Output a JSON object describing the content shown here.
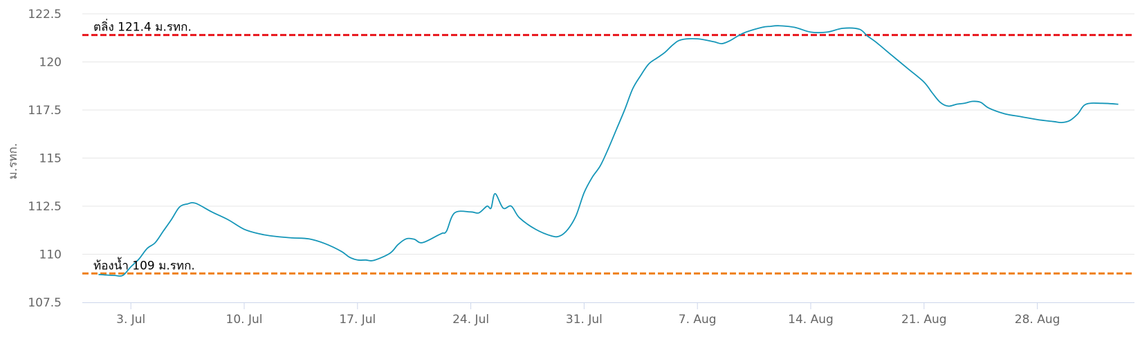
{
  "chart_data": {
    "type": "line",
    "ylabel": "ม.รทก.",
    "ylim": [
      107.5,
      122.5
    ],
    "yticks": [
      107.5,
      110,
      112.5,
      115,
      117.5,
      120,
      122.5
    ],
    "y_tick_labels": [
      "107.5",
      "110",
      "112.5",
      "115",
      "117.5",
      "120",
      "122.5"
    ],
    "xlim": [
      "2023-06-30",
      "2023-09-03"
    ],
    "xticks": [
      "2023-07-03",
      "2023-07-10",
      "2023-07-17",
      "2023-07-24",
      "2023-07-31",
      "2023-08-07",
      "2023-08-14",
      "2023-08-21",
      "2023-08-28"
    ],
    "x_tick_labels": [
      "3. Jul",
      "10. Jul",
      "17. Jul",
      "24. Jul",
      "31. Jul",
      "7. Aug",
      "14. Aug",
      "21. Aug",
      "28. Aug"
    ],
    "grid": true,
    "series_color": "#1596b8",
    "plot_lines": [
      {
        "label": "ตลิ่ง 121.4 ม.รทก.",
        "value": 121.4,
        "color": "#e8141b",
        "style": "dashed"
      },
      {
        "label": "ท้องน้ำ 109 ม.รทก.",
        "value": 109,
        "color": "#ef7f1a",
        "style": "dashed"
      }
    ],
    "series": [
      {
        "x": [
          "2023-07-01",
          "2023-07-01T12:00",
          "2023-07-02",
          "2023-07-02T12:00",
          "2023-07-03",
          "2023-07-03T12:00",
          "2023-07-04",
          "2023-07-04T12:00",
          "2023-07-05",
          "2023-07-05T12:00",
          "2023-07-06",
          "2023-07-06T12:00",
          "2023-07-07",
          "2023-07-08",
          "2023-07-09",
          "2023-07-10",
          "2023-07-11",
          "2023-07-12",
          "2023-07-13",
          "2023-07-14",
          "2023-07-15",
          "2023-07-16",
          "2023-07-16T12:00",
          "2023-07-17",
          "2023-07-17T12:00",
          "2023-07-18",
          "2023-07-19",
          "2023-07-19T12:00",
          "2023-07-20",
          "2023-07-20T12:00",
          "2023-07-21",
          "2023-07-22",
          "2023-07-22T06:00",
          "2023-07-22T12:00",
          "2023-07-23",
          "2023-07-24",
          "2023-07-24T12:00",
          "2023-07-25",
          "2023-07-25T06:00",
          "2023-07-25T12:00",
          "2023-07-26",
          "2023-07-26T12:00",
          "2023-07-27",
          "2023-07-28",
          "2023-07-29",
          "2023-07-29T12:00",
          "2023-07-30",
          "2023-07-30T12:00",
          "2023-07-31",
          "2023-07-31T12:00",
          "2023-08-01",
          "2023-08-01T12:00",
          "2023-08-02",
          "2023-08-02T12:00",
          "2023-08-03",
          "2023-08-03T12:00",
          "2023-08-04",
          "2023-08-04T12:00",
          "2023-08-05",
          "2023-08-05T12:00",
          "2023-08-06",
          "2023-08-07",
          "2023-08-08",
          "2023-08-08T12:00",
          "2023-08-09",
          "2023-08-09T12:00",
          "2023-08-10",
          "2023-08-11",
          "2023-08-11T12:00",
          "2023-08-12",
          "2023-08-13",
          "2023-08-14",
          "2023-08-15",
          "2023-08-16",
          "2023-08-17",
          "2023-08-17T12:00",
          "2023-08-18",
          "2023-08-19",
          "2023-08-20",
          "2023-08-21",
          "2023-08-21T12:00",
          "2023-08-22",
          "2023-08-22T12:00",
          "2023-08-23",
          "2023-08-23T12:00",
          "2023-08-24",
          "2023-08-24T12:00",
          "2023-08-25",
          "2023-08-26",
          "2023-08-27",
          "2023-08-28",
          "2023-08-29",
          "2023-08-29T12:00",
          "2023-08-30",
          "2023-08-30T12:00",
          "2023-08-31",
          "2023-09-01",
          "2023-09-02"
        ],
        "values": [
          108.95,
          108.92,
          108.9,
          108.9,
          109.35,
          109.75,
          110.3,
          110.6,
          111.2,
          111.8,
          112.45,
          112.62,
          112.65,
          112.2,
          111.8,
          111.3,
          111.05,
          110.92,
          110.85,
          110.8,
          110.55,
          110.15,
          109.85,
          109.7,
          109.7,
          109.68,
          110.05,
          110.5,
          110.8,
          110.78,
          110.6,
          111.0,
          111.1,
          111.2,
          112.15,
          112.2,
          112.15,
          112.5,
          112.4,
          113.15,
          112.4,
          112.5,
          111.9,
          111.3,
          110.95,
          110.95,
          111.3,
          112.0,
          113.2,
          114.0,
          114.6,
          115.5,
          116.5,
          117.5,
          118.6,
          119.3,
          119.9,
          120.2,
          120.5,
          120.9,
          121.15,
          121.2,
          121.05,
          120.95,
          121.1,
          121.35,
          121.55,
          121.8,
          121.85,
          121.88,
          121.8,
          121.55,
          121.55,
          121.75,
          121.7,
          121.35,
          121.05,
          120.35,
          119.65,
          118.95,
          118.4,
          117.9,
          117.7,
          117.8,
          117.85,
          117.95,
          117.9,
          117.6,
          117.3,
          117.15,
          117.0,
          116.9,
          116.85,
          116.95,
          117.3,
          117.8,
          117.85,
          117.8
        ]
      }
    ]
  }
}
